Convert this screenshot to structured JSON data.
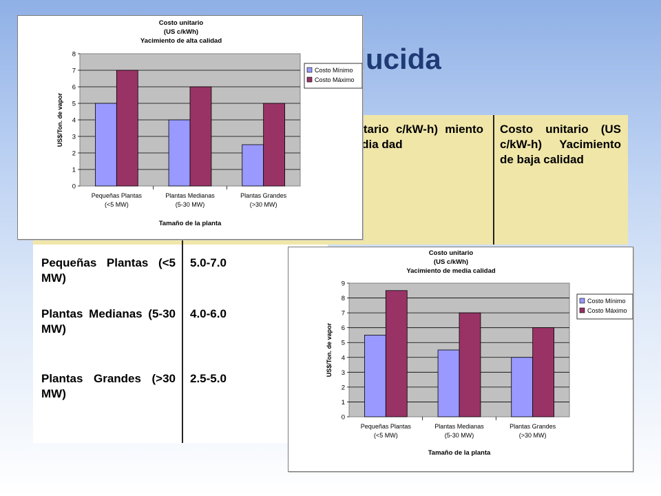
{
  "slide": {
    "title": "nergía producida"
  },
  "table": {
    "headers": [
      "",
      "",
      "to unitario c/kW-h) miento de media dad",
      "Costo unitario (US c/kW-h) Yacimiento de baja calidad"
    ],
    "rows": [
      {
        "label": "Pequeñas Plantas (<5 MW)",
        "value": "5.0-7.0"
      },
      {
        "label": "Plantas Medianas (5-30 MW)",
        "value": "4.0-6.0"
      },
      {
        "label": "Plantas Grandes (>30 MW)",
        "value": "2.5-5.0"
      }
    ]
  },
  "chart_data": [
    {
      "type": "bar",
      "title": "Costo unitario",
      "subtitle": "(US c/kWh)",
      "subtitle2": "Yacimiento de alta calidad",
      "xlabel": "Tamaño de la planta",
      "ylabel": "US$/Ton. de vapor",
      "ylim": [
        0,
        8
      ],
      "yticks": [
        "0",
        "1",
        "2",
        "3",
        "4",
        "5",
        "6",
        "7",
        "8"
      ],
      "categories": [
        {
          "line1": "Pequeñas Plantas",
          "line2": "(<5 MW)"
        },
        {
          "line1": "Plantas Medianas",
          "line2": "(5-30 MW)"
        },
        {
          "line1": "Plantas Grandes",
          "line2": "(>30 MW)"
        }
      ],
      "series": [
        {
          "name": "Costo Mínimo",
          "values": [
            5,
            4,
            2.5
          ],
          "color": "#9999ff"
        },
        {
          "name": "Costo Máximo",
          "values": [
            7,
            6,
            5
          ],
          "color": "#993366"
        }
      ],
      "grid": true,
      "plot_background": "#c0c0c0",
      "legend": "right"
    },
    {
      "type": "bar",
      "title": "Costo unitario",
      "subtitle": "(US c/kWh)",
      "subtitle2": "Yacimiento de media calidad",
      "xlabel": "Tamaño de la planta",
      "ylabel": "US$/Ton. de vapor",
      "ylim": [
        0,
        9
      ],
      "yticks": [
        "0",
        "1",
        "2",
        "3",
        "4",
        "5",
        "6",
        "7",
        "8",
        "9"
      ],
      "categories": [
        {
          "line1": "Pequeñas Plantas",
          "line2": "(<5 MW)"
        },
        {
          "line1": "Plantas Medianas",
          "line2": "(5-30 MW)"
        },
        {
          "line1": "Plantas Grandes",
          "line2": "(>30 MW)"
        }
      ],
      "series": [
        {
          "name": "Costo Mínimo",
          "values": [
            5.5,
            4.5,
            4
          ],
          "color": "#9999ff"
        },
        {
          "name": "Costo Máximo",
          "values": [
            8.5,
            7,
            6
          ],
          "color": "#993366"
        }
      ],
      "grid": true,
      "plot_background": "#c0c0c0",
      "legend": "right"
    }
  ]
}
